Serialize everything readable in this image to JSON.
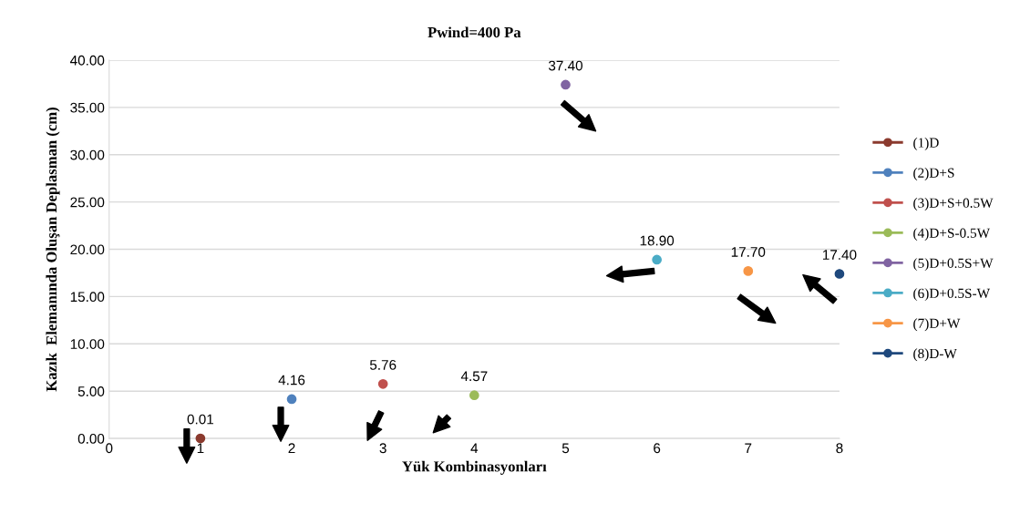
{
  "chart_data": {
    "type": "scatter",
    "title": "Pwind=400 Pa",
    "xlabel": "Yük Kombinasyonları",
    "ylabel": "Kazık  Elemanında Oluşan Deplasman (cm)",
    "xlim": [
      0,
      8
    ],
    "xticks": [
      0,
      1,
      2,
      3,
      4,
      5,
      6,
      7,
      8
    ],
    "ylim": [
      0,
      40
    ],
    "yticks": [
      {
        "value": 0,
        "label": "0.00"
      },
      {
        "value": 5,
        "label": "5.00"
      },
      {
        "value": 10,
        "label": "10.00"
      },
      {
        "value": 15,
        "label": "15.00"
      },
      {
        "value": 20,
        "label": "20.00"
      },
      {
        "value": 25,
        "label": "25.00"
      },
      {
        "value": 30,
        "label": "30.00"
      },
      {
        "value": 35,
        "label": "35.00"
      },
      {
        "value": 40,
        "label": "40.00"
      }
    ],
    "grid": "y",
    "legend": "right",
    "marker": "circle",
    "series": [
      {
        "name": "(1)D",
        "color": "#8b3a2e",
        "x": [
          1
        ],
        "values": [
          0.01
        ],
        "value_labels": [
          "0.01"
        ]
      },
      {
        "name": "(2)D+S",
        "color": "#4f81bd",
        "x": [
          2
        ],
        "values": [
          4.16
        ],
        "value_labels": [
          "4.16"
        ]
      },
      {
        "name": "(3)D+S+0.5W",
        "color": "#c0504d",
        "x": [
          3
        ],
        "values": [
          5.76
        ],
        "value_labels": [
          "5.76"
        ]
      },
      {
        "name": "(4)D+S-0.5W",
        "color": "#9bbb59",
        "x": [
          4
        ],
        "values": [
          4.57
        ],
        "value_labels": [
          "4.57"
        ]
      },
      {
        "name": "(5)D+0.5S+W",
        "color": "#8064a2",
        "x": [
          5
        ],
        "values": [
          37.4
        ],
        "value_labels": [
          "37.40"
        ]
      },
      {
        "name": "(6)D+0.5S-W",
        "color": "#4bacc6",
        "x": [
          6
        ],
        "values": [
          18.9
        ],
        "value_labels": [
          "18.90"
        ]
      },
      {
        "name": "(7)D+W",
        "color": "#f79646",
        "x": [
          7
        ],
        "values": [
          17.7
        ],
        "value_labels": [
          "17.70"
        ]
      },
      {
        "name": "(8)D-W",
        "color": "#1f497d",
        "x": [
          8
        ],
        "values": [
          17.4
        ],
        "value_labels": [
          "17.40"
        ]
      }
    ]
  }
}
